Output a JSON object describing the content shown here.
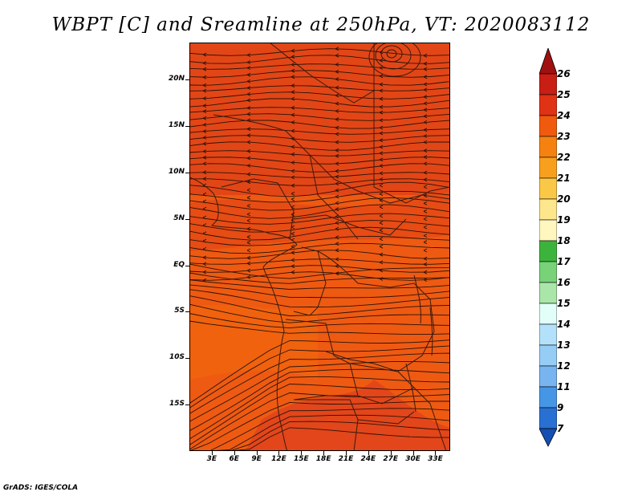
{
  "title": "WBPT [C] and Sreamline at 250hPa, VT: 2020083112",
  "footer": "GrADS: IGES/COLA",
  "map": {
    "variable": "Wet-bulb potential temperature",
    "units": "C",
    "level": "250hPa",
    "valid_time": "2020083112",
    "lon_range": [
      0,
      35
    ],
    "lat_range": [
      -20,
      24
    ],
    "y_ticks": [
      {
        "label": "20N",
        "lat": 20
      },
      {
        "label": "15N",
        "lat": 15
      },
      {
        "label": "10N",
        "lat": 10
      },
      {
        "label": "5N",
        "lat": 5
      },
      {
        "label": "EQ",
        "lat": 0
      },
      {
        "label": "5S",
        "lat": -5
      },
      {
        "label": "10S",
        "lat": -10
      },
      {
        "label": "15S",
        "lat": -15
      }
    ],
    "x_ticks": [
      {
        "label": "3E",
        "lon": 3
      },
      {
        "label": "6E",
        "lon": 6
      },
      {
        "label": "9E",
        "lon": 9
      },
      {
        "label": "12E",
        "lon": 12
      },
      {
        "label": "15E",
        "lon": 15
      },
      {
        "label": "18E",
        "lon": 18
      },
      {
        "label": "21E",
        "lon": 21
      },
      {
        "label": "24E",
        "lon": 24
      },
      {
        "label": "27E",
        "lon": 27
      },
      {
        "label": "30E",
        "lon": 30
      },
      {
        "label": "33E",
        "lon": 33
      }
    ]
  },
  "colorbar": {
    "labels": [
      "26",
      "25",
      "24",
      "23",
      "22",
      "21",
      "20",
      "19",
      "18",
      "17",
      "16",
      "15",
      "14",
      "13",
      "12",
      "11",
      "9",
      "7"
    ],
    "colors": [
      "#a01010",
      "#c81e14",
      "#e03214",
      "#f05a0f",
      "#f58210",
      "#f8a01e",
      "#fac846",
      "#fde68c",
      "#fff6c0",
      "#3cb43c",
      "#78d278",
      "#aae6aa",
      "#e1fff8",
      "#b4e1fa",
      "#96cdf5",
      "#78b4f0",
      "#4696e6",
      "#2870d2",
      "#1450b4"
    ]
  }
}
